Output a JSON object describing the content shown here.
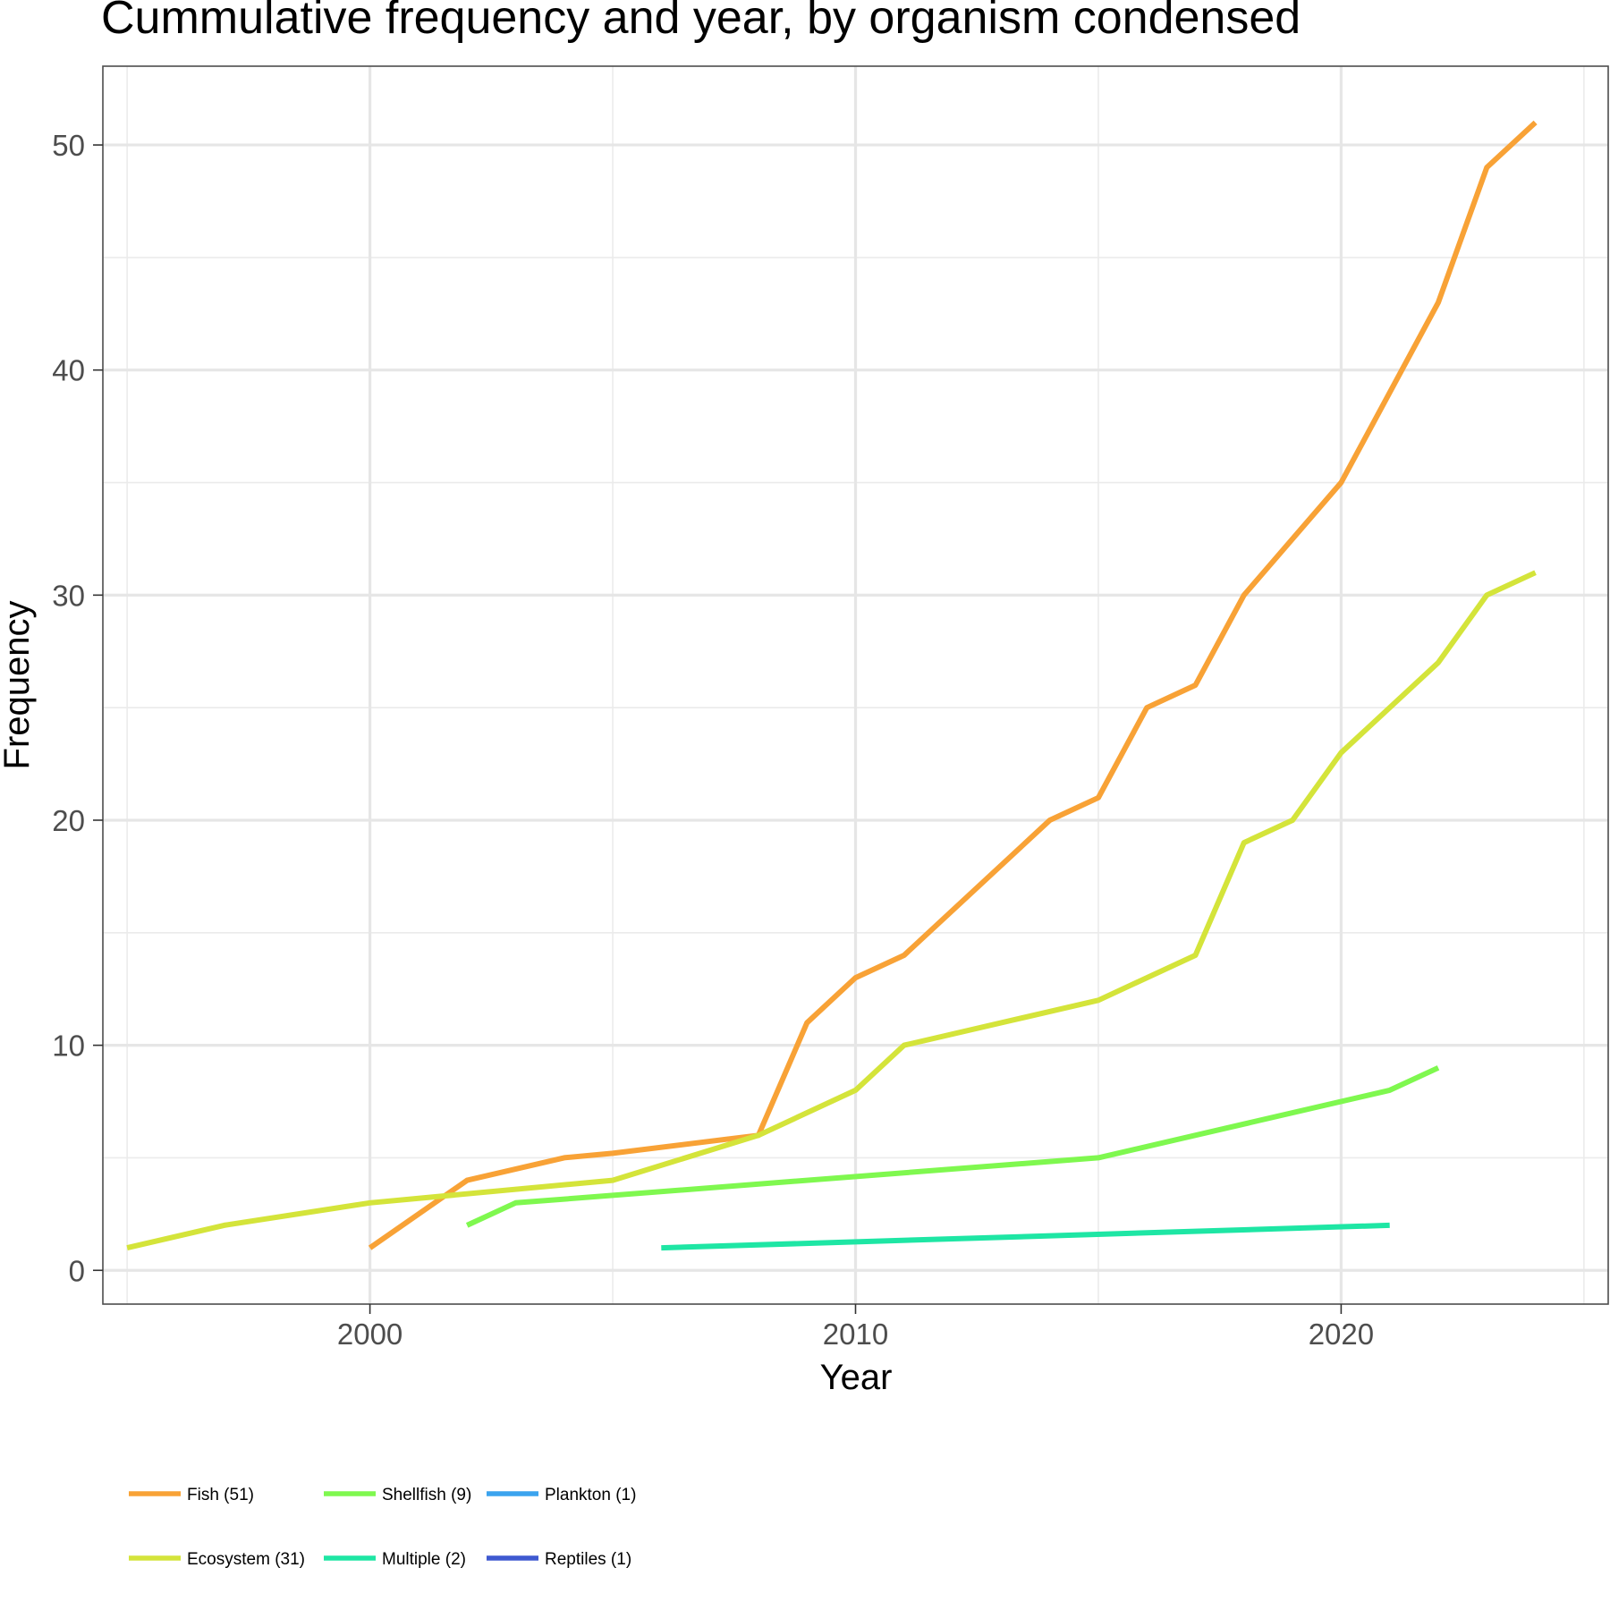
{
  "chart_data": {
    "type": "line",
    "title": "Cummulative frequency and year, by organism condensed",
    "xlabel": "Year",
    "ylabel": "Frequency",
    "xlim": [
      1994.5,
      2025.5
    ],
    "ylim": [
      -1.5,
      53.5
    ],
    "x_ticks": [
      2000,
      2010,
      2020
    ],
    "x_minor_ticks": [
      1995,
      2005,
      2015,
      2025
    ],
    "y_ticks": [
      0,
      10,
      20,
      30,
      40,
      50
    ],
    "y_minor_ticks": [
      5,
      15,
      25,
      35,
      45
    ],
    "grid": true,
    "legend_position": "bottom",
    "series": [
      {
        "name": "Fish (51)",
        "color": "#F8A236",
        "x": [
          2000,
          2002,
          2004,
          2005,
          2008,
          2009,
          2010,
          2011,
          2014,
          2015,
          2016,
          2017,
          2018,
          2020,
          2022,
          2023,
          2024
        ],
        "y": [
          1,
          4,
          5,
          5.2,
          6,
          11,
          13,
          14,
          20,
          21,
          25,
          26,
          30,
          35,
          43,
          49,
          51
        ]
      },
      {
        "name": "Ecosystem (31)",
        "color": "#D4E43A",
        "x": [
          1995,
          1997,
          2000,
          2005,
          2008,
          2010,
          2011,
          2015,
          2017,
          2018,
          2019,
          2020,
          2022,
          2023,
          2024
        ],
        "y": [
          1,
          2,
          3,
          4,
          6,
          8,
          10,
          12,
          14,
          19,
          20,
          23,
          27,
          30,
          31
        ]
      },
      {
        "name": "Shellfish (9)",
        "color": "#7FF84F",
        "x": [
          2002,
          2003,
          2015,
          2021,
          2022
        ],
        "y": [
          2,
          3,
          5,
          8,
          9
        ]
      },
      {
        "name": "Multiple (2)",
        "color": "#1EE6A4",
        "x": [
          2006,
          2021
        ],
        "y": [
          1,
          2
        ]
      },
      {
        "name": "Plankton (1)",
        "color": "#3BA3EE",
        "x": [],
        "y": []
      },
      {
        "name": "Reptiles (1)",
        "color": "#3E59D0",
        "x": [],
        "y": []
      }
    ],
    "legend_order": [
      "Fish (51)",
      "Shellfish (9)",
      "Plankton (1)",
      "Ecosystem (31)",
      "Multiple (2)",
      "Reptiles (1)"
    ]
  }
}
